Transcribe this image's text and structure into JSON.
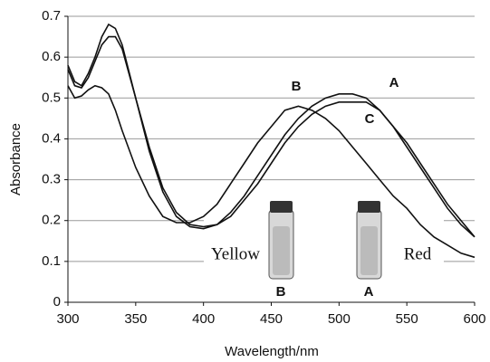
{
  "chart_data": {
    "type": "line",
    "x_label": "Wavelength/nm",
    "y_label": "Absorbance",
    "x": [
      300,
      305,
      310,
      315,
      320,
      325,
      330,
      335,
      340,
      350,
      360,
      370,
      380,
      390,
      400,
      410,
      420,
      430,
      440,
      450,
      460,
      470,
      480,
      490,
      500,
      510,
      520,
      530,
      540,
      550,
      560,
      570,
      580,
      590,
      600
    ],
    "series": [
      {
        "name": "A",
        "color": "#111111",
        "values": [
          0.58,
          0.54,
          0.53,
          0.56,
          0.6,
          0.65,
          0.68,
          0.67,
          0.63,
          0.5,
          0.37,
          0.27,
          0.21,
          0.185,
          0.18,
          0.19,
          0.22,
          0.26,
          0.31,
          0.36,
          0.41,
          0.45,
          0.48,
          0.5,
          0.51,
          0.51,
          0.5,
          0.47,
          0.43,
          0.38,
          0.33,
          0.28,
          0.23,
          0.19,
          0.16
        ]
      },
      {
        "name": "B",
        "color": "#111111",
        "values": [
          0.53,
          0.5,
          0.505,
          0.52,
          0.53,
          0.525,
          0.51,
          0.47,
          0.42,
          0.33,
          0.26,
          0.21,
          0.195,
          0.195,
          0.21,
          0.24,
          0.29,
          0.34,
          0.39,
          0.43,
          0.47,
          0.48,
          0.47,
          0.45,
          0.42,
          0.38,
          0.34,
          0.3,
          0.26,
          0.23,
          0.19,
          0.16,
          0.14,
          0.12,
          0.11
        ]
      },
      {
        "name": "C",
        "color": "#111111",
        "values": [
          0.57,
          0.53,
          0.525,
          0.55,
          0.59,
          0.63,
          0.65,
          0.65,
          0.62,
          0.5,
          0.38,
          0.28,
          0.22,
          0.19,
          0.185,
          0.19,
          0.21,
          0.25,
          0.29,
          0.34,
          0.39,
          0.43,
          0.46,
          0.48,
          0.49,
          0.49,
          0.49,
          0.47,
          0.43,
          0.39,
          0.34,
          0.29,
          0.24,
          0.2,
          0.16
        ]
      }
    ],
    "xlim": [
      300,
      600
    ],
    "xticks": [
      300,
      350,
      400,
      450,
      500,
      550,
      600
    ],
    "ylim": [
      0,
      0.7
    ],
    "yticks": [
      0,
      0.1,
      0.2,
      0.3,
      0.4,
      0.5,
      0.6,
      0.7
    ],
    "grid": true,
    "vials": [
      {
        "label": "B",
        "color_name": "Yellow"
      },
      {
        "label": "A",
        "color_name": "Red"
      }
    ]
  }
}
